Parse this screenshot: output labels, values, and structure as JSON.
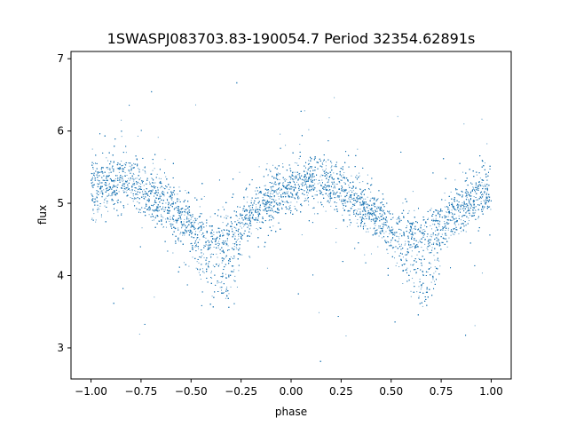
{
  "chart_data": {
    "type": "scatter",
    "title": "1SWASPJ083703.83-190054.7 Period 32354.62891s",
    "xlabel": "phase",
    "ylabel": "flux",
    "xlim": [
      -1.1,
      1.1
    ],
    "ylim": [
      2.57,
      7.1
    ],
    "x_ticks": [
      -1.0,
      -0.75,
      -0.5,
      -0.25,
      0.0,
      0.25,
      0.5,
      0.75,
      1.0
    ],
    "x_tick_labels": [
      "−1.00",
      "−0.75",
      "−0.50",
      "−0.25",
      "0.00",
      "0.25",
      "0.50",
      "0.75",
      "1.00"
    ],
    "y_ticks": [
      3,
      4,
      5,
      6,
      7
    ],
    "y_tick_labels": [
      "3",
      "4",
      "5",
      "6",
      "7"
    ],
    "grid": false,
    "point_color": "#1f77b4",
    "series": [
      {
        "x_range": [
          -1.0,
          1.0
        ],
        "trend": {
          "x": [
            -1.0,
            -0.9,
            -0.8,
            -0.7,
            -0.6,
            -0.5,
            -0.4,
            -0.35,
            -0.3,
            -0.2,
            -0.1,
            0.0,
            0.1,
            0.2,
            0.3,
            0.4,
            0.5,
            0.6,
            0.65,
            0.7,
            0.8,
            0.9,
            1.0
          ],
          "y": [
            5.2,
            5.28,
            5.3,
            5.12,
            4.92,
            4.68,
            4.52,
            4.5,
            4.55,
            4.82,
            5.05,
            5.2,
            5.3,
            5.28,
            5.1,
            4.88,
            4.65,
            4.52,
            4.5,
            4.55,
            4.82,
            5.05,
            5.2
          ]
        },
        "secondary_dip": {
          "x": [
            -0.5,
            -0.45,
            -0.4,
            -0.35,
            -0.3,
            -0.25,
            0.5,
            0.55,
            0.6,
            0.65,
            0.7,
            0.75
          ],
          "y": [
            4.5,
            4.2,
            3.95,
            3.85,
            4.0,
            4.35,
            4.5,
            4.2,
            3.95,
            3.85,
            4.0,
            4.35
          ]
        },
        "scatter_sigma": 0.17,
        "outlier_range": [
          2.75,
          6.95
        ],
        "point_count": 14000
      }
    ]
  }
}
